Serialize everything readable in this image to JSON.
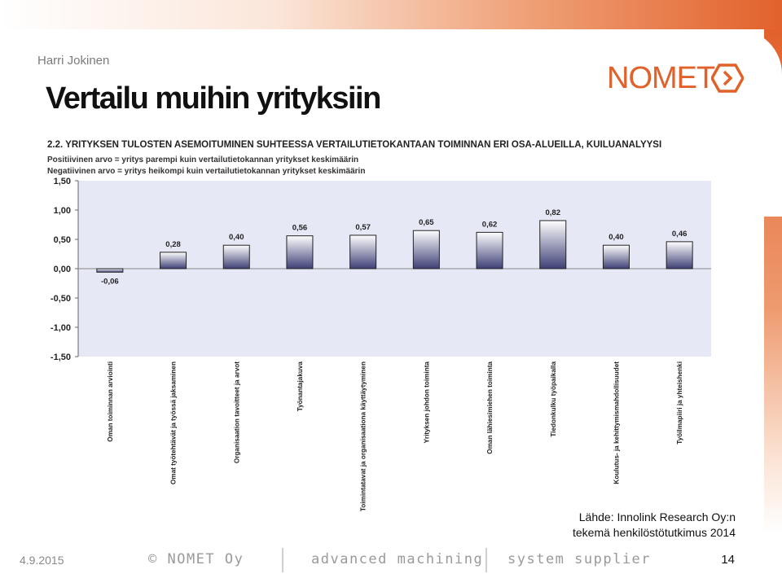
{
  "header": {
    "author": "Harri Jokinen",
    "title": "Vertailu muihin yrityksiin",
    "logo_text": "NOMET"
  },
  "chart_heading": "2.2. YRITYKSEN TULOSTEN ASEMOITUMINEN SUHTEESSA VERTAILUTIETOKANTAAN TOIMINNAN ERI OSA-ALUEILLA, KUILUANALYYSI",
  "chart_subheading_1": "Positiivinen arvo = yritys parempi kuin vertailutietokannan yritykset keskimäärin",
  "chart_subheading_2": "Negatiivinen arvo = yritys heikompi kuin vertailutietokannan yritykset keskimäärin",
  "chart_data": {
    "type": "bar",
    "categories": [
      "Oman toiminnan arviointi",
      "Omat työtehtävät ja työssä jaksaminen",
      "Organisaation tavoitteet ja arvot",
      "Työnantajakuva",
      "Toimintatavat ja organisaationa käyttäytyminen",
      "Yrityksen johdon toiminta",
      "Oman lähiesimiehen toiminta",
      "Tiedonkulku työpaikalla",
      "Koulutus- ja kehittymismahdollisuudet",
      "Työilmapiiri ja yhteishenki"
    ],
    "values": [
      -0.06,
      0.28,
      0.4,
      0.56,
      0.57,
      0.65,
      0.62,
      0.82,
      0.4,
      0.46
    ],
    "value_labels": [
      "-0,06",
      "0,28",
      "0,40",
      "0,56",
      "0,57",
      "0,65",
      "0,62",
      "0,82",
      "0,40",
      "0,46"
    ],
    "yticks": [
      "1,50",
      "1,00",
      "0,50",
      "0,00",
      "-0,50",
      "-1,00",
      "-1,50"
    ],
    "ytick_values": [
      1.5,
      1.0,
      0.5,
      0.0,
      -0.5,
      -1.0,
      -1.5
    ],
    "ylim": [
      -1.5,
      1.5
    ],
    "grid": false,
    "colors": {
      "plot_background": "#e6e8f6",
      "bar_top": "#ffffff",
      "bar_bottom": "#3e4076",
      "axis": "#666666"
    }
  },
  "source": {
    "line1": "Lähde: Innolink Research Oy:n",
    "line2": "tekemä henkilöstötutkimus 2014"
  },
  "footer": {
    "date": "4.9.2015",
    "copyright": "© NOMET Oy",
    "slogan1": "advanced machining",
    "slogan2": "system supplier",
    "page_number": "14"
  }
}
